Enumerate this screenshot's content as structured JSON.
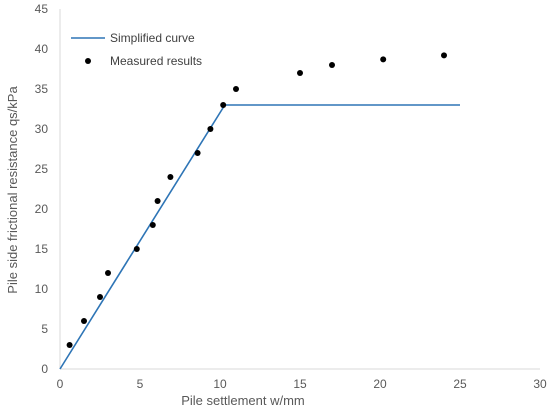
{
  "chart_data": {
    "type": "scatter",
    "xlabel": "Pile settlement w/mm",
    "ylabel": "Pile side frictional resistance qs/kPa",
    "xlim": [
      0,
      30
    ],
    "ylim": [
      0,
      45
    ],
    "xticks": [
      0,
      5,
      10,
      15,
      20,
      25,
      30
    ],
    "yticks": [
      0,
      5,
      10,
      15,
      20,
      25,
      30,
      35,
      40,
      45
    ],
    "grid": false,
    "legend_position": "top-left",
    "series": [
      {
        "name": "Simplified curve",
        "kind": "line",
        "color": "#2e75b6",
        "points": [
          [
            0,
            0
          ],
          [
            10.3,
            33
          ],
          [
            25,
            33
          ]
        ]
      },
      {
        "name": "Measured results",
        "kind": "scatter",
        "color": "#000000",
        "points": [
          [
            0.6,
            3
          ],
          [
            1.5,
            6
          ],
          [
            2.5,
            9
          ],
          [
            3.0,
            12
          ],
          [
            4.8,
            15
          ],
          [
            5.8,
            18
          ],
          [
            6.1,
            21
          ],
          [
            6.9,
            24
          ],
          [
            8.6,
            27
          ],
          [
            9.4,
            30
          ],
          [
            10.2,
            33
          ],
          [
            11.0,
            35
          ],
          [
            15.0,
            37
          ],
          [
            17.0,
            38
          ],
          [
            20.2,
            38.7
          ],
          [
            24.0,
            39.2
          ]
        ]
      }
    ]
  }
}
